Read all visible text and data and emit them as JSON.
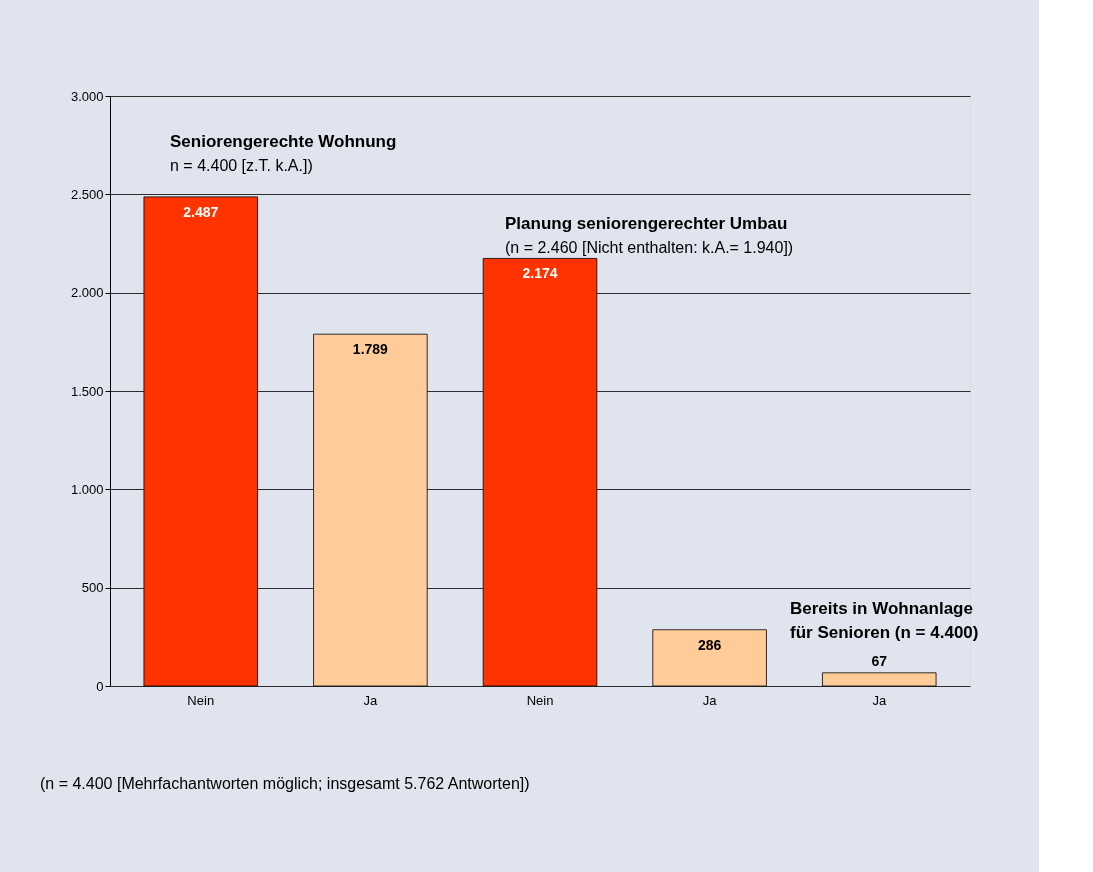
{
  "chart_data": {
    "type": "bar",
    "categories": [
      "Nein",
      "Ja",
      "Nein",
      "Ja",
      "Ja"
    ],
    "values": [
      2487,
      1789,
      2174,
      286,
      67
    ],
    "colors": [
      "#ff3300",
      "#ffcc99",
      "#ff3300",
      "#ffcc99",
      "#ffcc99"
    ],
    "value_labels": [
      "2.487",
      "1.789",
      "2.174",
      "286",
      "67"
    ],
    "ylim": [
      0,
      3000
    ],
    "yticks": [
      {
        "value": 0,
        "label": "0"
      },
      {
        "value": 500,
        "label": "500"
      },
      {
        "value": 1000,
        "label": "1.000"
      },
      {
        "value": 1500,
        "label": "1.500"
      },
      {
        "value": 2000,
        "label": "2.000"
      },
      {
        "value": 2500,
        "label": "2.500"
      },
      {
        "value": 3000,
        "label": "3.000"
      }
    ],
    "grid": "y",
    "annotations": [
      "Seniorengerechte Wohnung",
      "n = 4.400 [z.T. k.A.])",
      "Planung seniorengerechter Umbau",
      "(n = 2.460 [Nicht enthalten: k.A.= 1.940])",
      "Bereits in Wohnanlage für Senioren (n = 4.400)",
      "(n = 4.400 [Mehrfachantworten möglich; insgesamt 5.762 Antworten])"
    ]
  }
}
